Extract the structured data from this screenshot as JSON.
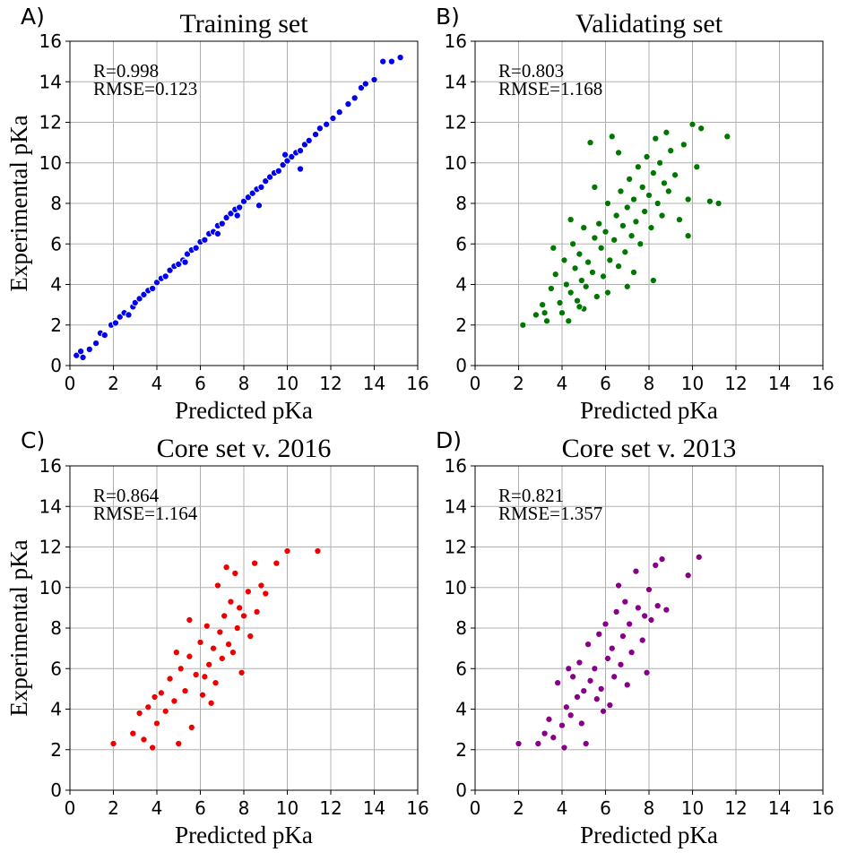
{
  "chart_data": [
    {
      "type": "scatter",
      "panel_label": "A)",
      "title": "Training set",
      "xlabel": "Predicted pKa",
      "ylabel": "Experimental pKa",
      "xlim": [
        0,
        16
      ],
      "ylim": [
        0,
        16
      ],
      "xticks": [
        0,
        2,
        4,
        6,
        8,
        10,
        12,
        14,
        16
      ],
      "yticks": [
        0,
        2,
        4,
        6,
        8,
        10,
        12,
        14,
        16
      ],
      "grid": true,
      "color": "#0000ee",
      "annotation": [
        "R=0.998",
        "RMSE=0.123"
      ],
      "points": [
        [
          0.3,
          0.5
        ],
        [
          0.5,
          0.7
        ],
        [
          0.6,
          0.4
        ],
        [
          0.9,
          0.8
        ],
        [
          1.2,
          1.1
        ],
        [
          1.4,
          1.6
        ],
        [
          1.6,
          1.5
        ],
        [
          1.9,
          2.0
        ],
        [
          2.1,
          2.1
        ],
        [
          2.3,
          2.4
        ],
        [
          2.5,
          2.6
        ],
        [
          2.7,
          2.5
        ],
        [
          2.9,
          2.9
        ],
        [
          3.0,
          3.1
        ],
        [
          3.2,
          3.3
        ],
        [
          3.4,
          3.5
        ],
        [
          3.6,
          3.7
        ],
        [
          3.8,
          3.8
        ],
        [
          4.0,
          4.1
        ],
        [
          4.2,
          4.3
        ],
        [
          4.4,
          4.4
        ],
        [
          4.6,
          4.7
        ],
        [
          4.8,
          4.9
        ],
        [
          5.0,
          5.0
        ],
        [
          5.2,
          5.2
        ],
        [
          5.4,
          5.5
        ],
        [
          5.6,
          5.7
        ],
        [
          5.8,
          5.8
        ],
        [
          6.0,
          6.1
        ],
        [
          6.2,
          6.2
        ],
        [
          6.4,
          6.5
        ],
        [
          6.6,
          6.6
        ],
        [
          6.8,
          6.9
        ],
        [
          7.0,
          7.0
        ],
        [
          7.2,
          7.3
        ],
        [
          7.4,
          7.5
        ],
        [
          7.6,
          7.7
        ],
        [
          7.8,
          7.8
        ],
        [
          8.0,
          8.1
        ],
        [
          8.2,
          8.3
        ],
        [
          8.4,
          8.5
        ],
        [
          8.6,
          8.7
        ],
        [
          8.8,
          8.8
        ],
        [
          9.0,
          9.1
        ],
        [
          9.2,
          9.3
        ],
        [
          9.4,
          9.5
        ],
        [
          9.6,
          9.6
        ],
        [
          9.8,
          9.9
        ],
        [
          10.0,
          10.1
        ],
        [
          10.2,
          10.3
        ],
        [
          10.4,
          10.5
        ],
        [
          10.6,
          10.6
        ],
        [
          10.8,
          10.9
        ],
        [
          11.0,
          11.1
        ],
        [
          11.3,
          11.4
        ],
        [
          11.5,
          11.7
        ],
        [
          11.8,
          11.9
        ],
        [
          12.1,
          12.2
        ],
        [
          12.4,
          12.5
        ],
        [
          12.8,
          12.9
        ],
        [
          13.1,
          13.2
        ],
        [
          13.4,
          13.7
        ],
        [
          13.6,
          13.9
        ],
        [
          14.0,
          14.1
        ],
        [
          14.4,
          15.0
        ],
        [
          14.8,
          15.0
        ],
        [
          15.2,
          15.2
        ],
        [
          8.7,
          7.9
        ],
        [
          10.6,
          9.7
        ],
        [
          6.8,
          6.5
        ],
        [
          9.9,
          10.4
        ],
        [
          5.3,
          5.1
        ],
        [
          7.7,
          7.4
        ]
      ]
    },
    {
      "type": "scatter",
      "panel_label": "B)",
      "title": "Validating set",
      "xlabel": "Predicted pKa",
      "ylabel": "",
      "xlim": [
        0,
        16
      ],
      "ylim": [
        0,
        16
      ],
      "xticks": [
        0,
        2,
        4,
        6,
        8,
        10,
        12,
        14,
        16
      ],
      "yticks": [
        0,
        2,
        4,
        6,
        8,
        10,
        12,
        14,
        16
      ],
      "grid": true,
      "color": "#007700",
      "annotation": [
        "R=0.803",
        "RMSE=1.168"
      ],
      "points": [
        [
          2.2,
          2.0
        ],
        [
          2.8,
          2.5
        ],
        [
          3.1,
          3.0
        ],
        [
          3.3,
          2.2
        ],
        [
          3.5,
          3.8
        ],
        [
          3.7,
          4.5
        ],
        [
          3.9,
          3.1
        ],
        [
          4.0,
          2.6
        ],
        [
          4.1,
          5.2
        ],
        [
          4.2,
          4.0
        ],
        [
          4.3,
          2.2
        ],
        [
          4.4,
          3.6
        ],
        [
          4.5,
          6.0
        ],
        [
          4.6,
          4.8
        ],
        [
          4.7,
          3.2
        ],
        [
          4.8,
          5.5
        ],
        [
          4.9,
          4.2
        ],
        [
          5.0,
          6.8
        ],
        [
          5.1,
          3.9
        ],
        [
          5.2,
          5.1
        ],
        [
          5.3,
          11.0
        ],
        [
          5.4,
          4.6
        ],
        [
          5.5,
          6.3
        ],
        [
          5.6,
          3.4
        ],
        [
          5.7,
          7.0
        ],
        [
          5.8,
          5.8
        ],
        [
          5.9,
          4.4
        ],
        [
          6.0,
          6.6
        ],
        [
          6.1,
          8.0
        ],
        [
          6.2,
          5.2
        ],
        [
          6.3,
          11.3
        ],
        [
          6.4,
          6.2
        ],
        [
          6.5,
          7.4
        ],
        [
          6.6,
          4.9
        ],
        [
          6.7,
          8.6
        ],
        [
          6.8,
          6.9
        ],
        [
          6.9,
          5.6
        ],
        [
          7.0,
          7.8
        ],
        [
          7.1,
          9.2
        ],
        [
          7.2,
          6.4
        ],
        [
          7.3,
          8.2
        ],
        [
          7.4,
          7.1
        ],
        [
          7.5,
          9.8
        ],
        [
          7.6,
          6.0
        ],
        [
          7.7,
          8.8
        ],
        [
          7.8,
          7.6
        ],
        [
          7.9,
          10.3
        ],
        [
          8.0,
          8.4
        ],
        [
          8.1,
          6.8
        ],
        [
          8.2,
          9.5
        ],
        [
          8.3,
          11.2
        ],
        [
          8.4,
          8.0
        ],
        [
          8.5,
          10.0
        ],
        [
          8.6,
          7.4
        ],
        [
          8.7,
          9.0
        ],
        [
          8.8,
          11.5
        ],
        [
          8.9,
          8.6
        ],
        [
          9.0,
          10.6
        ],
        [
          9.2,
          9.4
        ],
        [
          9.4,
          7.2
        ],
        [
          9.6,
          10.9
        ],
        [
          9.8,
          8.2
        ],
        [
          10.0,
          11.9
        ],
        [
          10.2,
          9.8
        ],
        [
          10.4,
          11.7
        ],
        [
          10.8,
          8.1
        ],
        [
          11.2,
          8.0
        ],
        [
          11.6,
          11.3
        ],
        [
          5.0,
          2.8
        ],
        [
          6.1,
          3.6
        ],
        [
          7.3,
          4.6
        ],
        [
          8.2,
          4.2
        ],
        [
          3.6,
          5.8
        ],
        [
          4.4,
          7.2
        ],
        [
          5.5,
          8.8
        ],
        [
          6.6,
          10.5
        ],
        [
          7.0,
          3.9
        ],
        [
          9.8,
          6.4
        ],
        [
          3.2,
          2.6
        ],
        [
          4.8,
          2.9
        ]
      ]
    },
    {
      "type": "scatter",
      "panel_label": "C)",
      "title": "Core set v. 2016",
      "xlabel": "Predicted pKa",
      "ylabel": "Experimental pKa",
      "xlim": [
        0,
        16
      ],
      "ylim": [
        0,
        16
      ],
      "xticks": [
        0,
        2,
        4,
        6,
        8,
        10,
        12,
        14,
        16
      ],
      "yticks": [
        0,
        2,
        4,
        6,
        8,
        10,
        12,
        14,
        16
      ],
      "grid": true,
      "color": "#ee0000",
      "annotation": [
        "R=0.864",
        "RMSE=1.164"
      ],
      "points": [
        [
          2.0,
          2.3
        ],
        [
          2.9,
          2.8
        ],
        [
          3.2,
          3.8
        ],
        [
          3.4,
          2.5
        ],
        [
          3.6,
          4.1
        ],
        [
          3.8,
          2.1
        ],
        [
          4.0,
          3.3
        ],
        [
          4.2,
          4.8
        ],
        [
          4.4,
          3.9
        ],
        [
          4.6,
          5.5
        ],
        [
          4.8,
          4.4
        ],
        [
          5.0,
          2.3
        ],
        [
          5.1,
          6.0
        ],
        [
          5.3,
          4.9
        ],
        [
          5.5,
          6.6
        ],
        [
          5.6,
          3.1
        ],
        [
          5.8,
          5.7
        ],
        [
          6.0,
          7.3
        ],
        [
          6.1,
          4.7
        ],
        [
          6.3,
          8.1
        ],
        [
          6.4,
          6.2
        ],
        [
          6.6,
          7.0
        ],
        [
          6.7,
          5.3
        ],
        [
          6.8,
          10.1
        ],
        [
          6.9,
          7.8
        ],
        [
          7.0,
          6.5
        ],
        [
          7.1,
          8.6
        ],
        [
          7.3,
          7.2
        ],
        [
          7.4,
          9.3
        ],
        [
          7.5,
          6.8
        ],
        [
          7.6,
          10.7
        ],
        [
          7.7,
          8.0
        ],
        [
          7.8,
          9.0
        ],
        [
          7.9,
          5.8
        ],
        [
          8.0,
          8.6
        ],
        [
          8.2,
          9.8
        ],
        [
          8.3,
          7.6
        ],
        [
          8.5,
          11.2
        ],
        [
          8.6,
          8.8
        ],
        [
          8.8,
          10.1
        ],
        [
          9.0,
          9.7
        ],
        [
          9.5,
          11.2
        ],
        [
          10.0,
          11.8
        ],
        [
          11.4,
          11.8
        ],
        [
          5.5,
          8.4
        ],
        [
          6.2,
          5.6
        ],
        [
          4.9,
          6.8
        ],
        [
          7.2,
          11.0
        ],
        [
          3.9,
          4.6
        ],
        [
          6.5,
          4.3
        ]
      ]
    },
    {
      "type": "scatter",
      "panel_label": "D)",
      "title": "Core set v. 2013",
      "xlabel": "Predicted pKa",
      "ylabel": "",
      "xlim": [
        0,
        16
      ],
      "ylim": [
        0,
        16
      ],
      "xticks": [
        0,
        2,
        4,
        6,
        8,
        10,
        12,
        14,
        16
      ],
      "yticks": [
        0,
        2,
        4,
        6,
        8,
        10,
        12,
        14,
        16
      ],
      "grid": true,
      "color": "#880088",
      "annotation": [
        "R=0.821",
        "RMSE=1.357"
      ],
      "points": [
        [
          2.0,
          2.3
        ],
        [
          2.9,
          2.3
        ],
        [
          3.2,
          2.8
        ],
        [
          3.4,
          3.5
        ],
        [
          3.6,
          2.6
        ],
        [
          3.8,
          5.3
        ],
        [
          4.0,
          3.2
        ],
        [
          4.1,
          2.1
        ],
        [
          4.2,
          4.1
        ],
        [
          4.4,
          3.7
        ],
        [
          4.5,
          5.6
        ],
        [
          4.7,
          4.6
        ],
        [
          4.8,
          6.3
        ],
        [
          4.9,
          3.3
        ],
        [
          5.0,
          4.9
        ],
        [
          5.1,
          2.3
        ],
        [
          5.2,
          7.2
        ],
        [
          5.3,
          5.4
        ],
        [
          5.5,
          6.0
        ],
        [
          5.6,
          4.5
        ],
        [
          5.7,
          7.7
        ],
        [
          5.8,
          5.0
        ],
        [
          6.0,
          8.2
        ],
        [
          6.1,
          6.5
        ],
        [
          6.2,
          4.2
        ],
        [
          6.3,
          7.0
        ],
        [
          6.4,
          5.6
        ],
        [
          6.5,
          8.8
        ],
        [
          6.6,
          10.1
        ],
        [
          6.7,
          6.2
        ],
        [
          6.8,
          7.6
        ],
        [
          6.9,
          9.3
        ],
        [
          7.0,
          5.2
        ],
        [
          7.1,
          8.2
        ],
        [
          7.2,
          6.8
        ],
        [
          7.4,
          10.8
        ],
        [
          7.5,
          9.0
        ],
        [
          7.7,
          7.4
        ],
        [
          7.8,
          8.6
        ],
        [
          7.9,
          5.8
        ],
        [
          8.0,
          9.9
        ],
        [
          8.1,
          8.4
        ],
        [
          8.3,
          11.1
        ],
        [
          8.4,
          9.1
        ],
        [
          8.6,
          11.4
        ],
        [
          8.8,
          8.9
        ],
        [
          9.8,
          10.6
        ],
        [
          10.3,
          11.5
        ],
        [
          5.9,
          3.9
        ],
        [
          4.3,
          6.0
        ]
      ]
    }
  ]
}
